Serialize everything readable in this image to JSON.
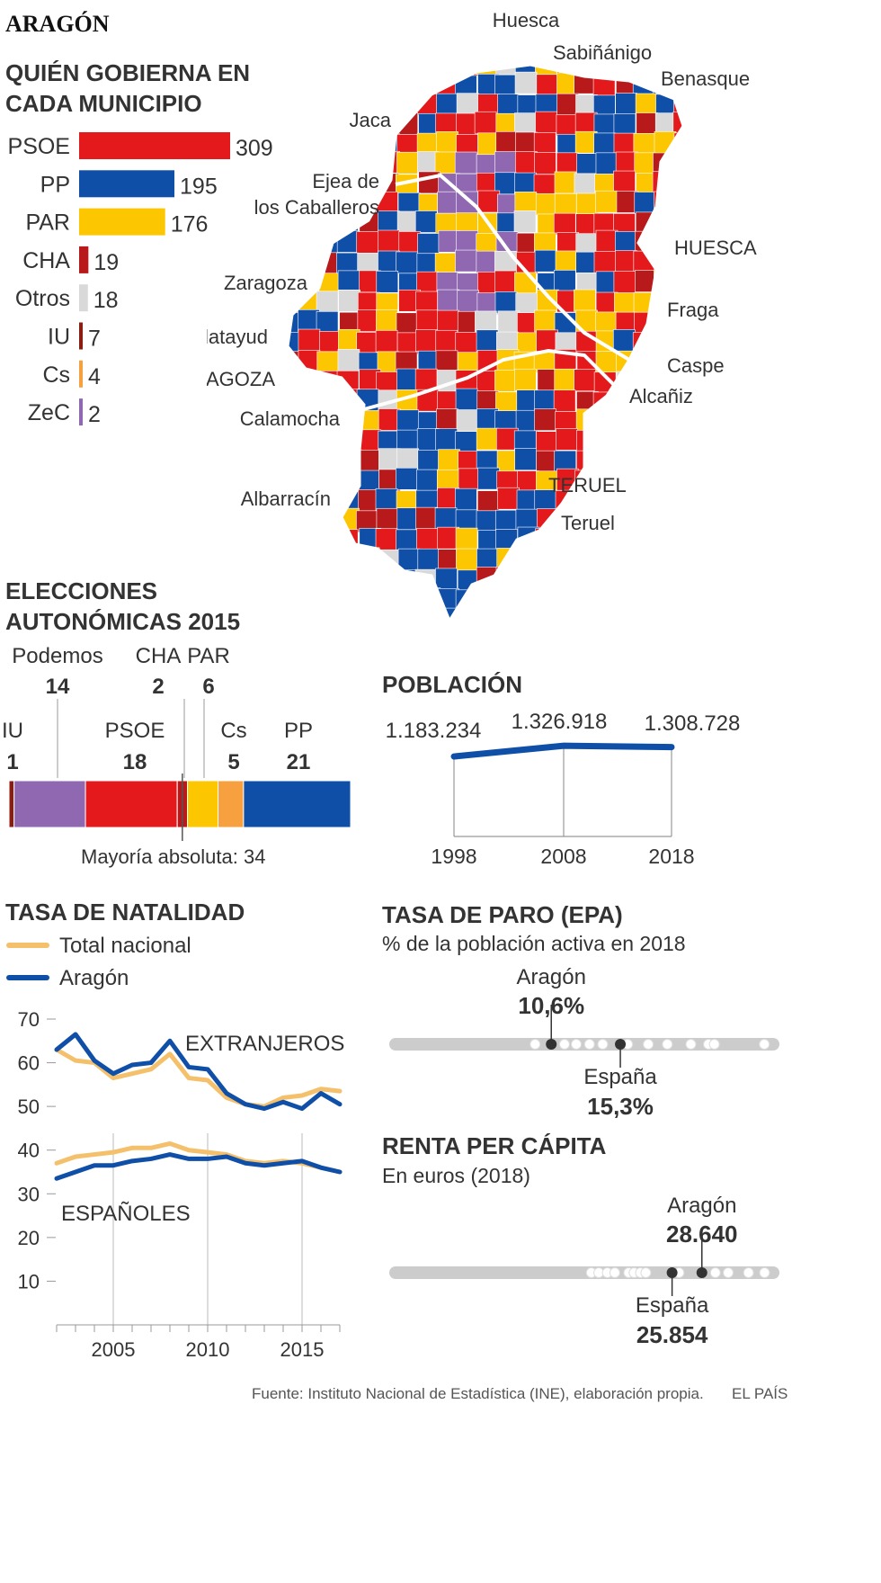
{
  "header": {
    "title": "ARAGÓN"
  },
  "municipios": {
    "title_line1": "QUIÉN GOBIERNA EN",
    "title_line2": "CADA MUNICIPIO",
    "chart_data": {
      "type": "bar",
      "categories": [
        "PSOE",
        "PP",
        "PAR",
        "CHA",
        "Otros",
        "IU",
        "Cs",
        "ZeC"
      ],
      "values": [
        309,
        195,
        176,
        19,
        18,
        7,
        4,
        2
      ],
      "colors": [
        "#e3191b",
        "#0f4fa8",
        "#fcc600",
        "#b8191b",
        "#d9d9d9",
        "#8a1c12",
        "#f6a040",
        "#9067b1"
      ],
      "value_labels": [
        "309",
        "195",
        "176",
        "19",
        "18",
        "7",
        "4",
        "2"
      ]
    }
  },
  "map": {
    "labels": [
      "Huesca",
      "Sabiñánigo",
      "Benasque",
      "Jaca",
      "Ejea de",
      "los Caballeros",
      "HUESCA",
      "Zaragoza",
      "Fraga",
      "Calatayud",
      "Caspe",
      "ZARAGOZA",
      "Alcañiz",
      "Calamocha",
      "TERUEL",
      "Albarracín",
      "Teruel"
    ],
    "colors": {
      "psoe": "#e3191b",
      "pp": "#0f4fa8",
      "par": "#fcc600",
      "cha": "#b8191b",
      "zec": "#9067b1",
      "otros": "#d9d9d9",
      "border": "#ffffff"
    }
  },
  "elecciones": {
    "title_line1": "ELECCIONES",
    "title_line2": "AUTONÓMICAS 2015",
    "majority_label": "Mayoría absoluta: 34",
    "chart_data": {
      "type": "bar",
      "orientation": "stacked-horizontal",
      "categories": [
        "IU",
        "Podemos",
        "PSOE",
        "CHA",
        "PAR",
        "Cs",
        "PP"
      ],
      "values": [
        1,
        14,
        18,
        2,
        6,
        5,
        21
      ],
      "value_labels": [
        "1",
        "14",
        "18",
        "2",
        "6",
        "5",
        "21"
      ],
      "colors": [
        "#8a1c12",
        "#9067b1",
        "#e3191b",
        "#b8191b",
        "#fcc600",
        "#f6a040",
        "#0f4fa8"
      ],
      "majority": 34
    }
  },
  "poblacion": {
    "title": "POBLACIÓN",
    "chart_data": {
      "type": "line",
      "x": [
        "1998",
        "2008",
        "2018"
      ],
      "values": [
        1183234,
        1326918,
        1308728
      ],
      "value_labels": [
        "1.183.234",
        "1.326.918",
        "1.308.728"
      ],
      "color": "#0f4fa8"
    }
  },
  "natalidad": {
    "title": "TASA DE NATALIDAD",
    "legend": [
      "Total nacional",
      "Aragón"
    ],
    "label_extranjeros": "EXTRANJEROS",
    "label_espanoles": "ESPAÑOLES",
    "chart_data": {
      "type": "line",
      "x": [
        2002,
        2003,
        2004,
        2005,
        2006,
        2007,
        2008,
        2009,
        2010,
        2011,
        2012,
        2013,
        2014,
        2015,
        2016,
        2017
      ],
      "ylim": [
        0,
        70
      ],
      "yticks": [
        "10",
        "20",
        "30",
        "40",
        "50",
        "60",
        "70"
      ],
      "xticks": [
        "2005",
        "2010",
        "2015"
      ],
      "series": [
        {
          "name": "Total nacional",
          "group": "EXTRANJEROS",
          "color": "#f5c06b",
          "values": [
            63,
            60.5,
            60,
            56.5,
            57.5,
            58.5,
            62,
            56.5,
            56,
            52,
            50.5,
            50,
            52,
            52.5,
            54,
            53.5
          ]
        },
        {
          "name": "Aragón",
          "group": "EXTRANJEROS",
          "color": "#0f4fa8",
          "values": [
            63,
            66.5,
            60.5,
            57.5,
            59.5,
            60,
            65,
            59,
            58.5,
            53,
            50.5,
            49.5,
            51,
            49.5,
            53,
            50.5
          ]
        },
        {
          "name": "Total nacional",
          "group": "ESPAÑOLES",
          "color": "#f5c06b",
          "values": [
            37,
            38.5,
            39,
            39.5,
            40.5,
            40.5,
            41.5,
            40,
            39.5,
            39,
            37.5,
            37,
            37.5,
            37,
            36,
            35
          ]
        },
        {
          "name": "Aragón",
          "group": "ESPAÑOLES",
          "color": "#0f4fa8",
          "values": [
            33.5,
            35,
            36.5,
            36.5,
            37.5,
            38,
            39,
            38,
            38,
            38.5,
            37,
            36.5,
            37,
            37.5,
            36,
            35
          ]
        }
      ]
    }
  },
  "paro": {
    "title": "TASA DE PARO (EPA)",
    "subtitle": "% de la población activa en 2018",
    "aragon_label": "Aragón",
    "aragon_value": "10,6%",
    "espana_label": "España",
    "espana_value": "15,3%",
    "chart_data": {
      "type": "scatter",
      "values": [
        10.6,
        15.3
      ],
      "other_regions": [
        9.5,
        11.5,
        12.3,
        13.2,
        14.1,
        15.8,
        17.2,
        18.5,
        20.1,
        21.3,
        21.7,
        25.1
      ]
    }
  },
  "renta": {
    "title": "RENTA PER CÁPITA",
    "subtitle": "En euros (2018)",
    "aragon_label": "Aragón",
    "aragon_value": "28.640",
    "espana_label": "España",
    "espana_value": "25.854",
    "chart_data": {
      "type": "scatter",
      "values": [
        28640,
        25854
      ],
      "other_regions": [
        18300,
        19000,
        19800,
        20500,
        21800,
        22300,
        22900,
        23400,
        26500,
        29900,
        31100,
        33000,
        34500
      ]
    }
  },
  "footer": {
    "source": "Fuente: Instituto Nacional de Estadística (INE), elaboración propia.",
    "brand": "EL PAÍS"
  }
}
